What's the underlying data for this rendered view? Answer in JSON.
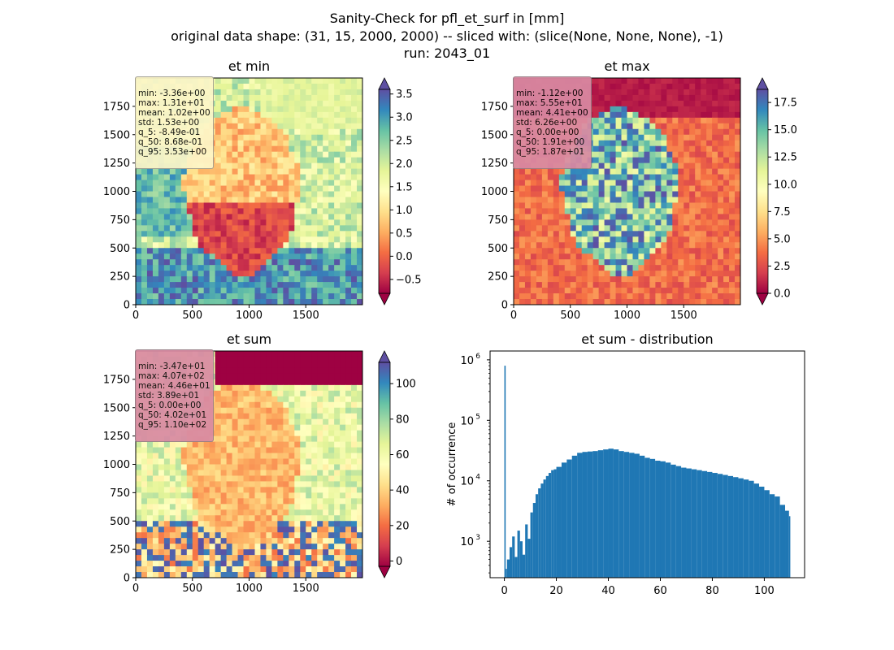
{
  "figure": {
    "title_lines": [
      "Sanity-Check for pfl_et_surf in [mm]",
      "original data shape: (31, 15, 2000, 2000) -- sliced with: (slice(None, None, None), -1)",
      "run: 2043_01"
    ]
  },
  "colormap": {
    "name": "Spectral",
    "stops": [
      "#9e0142",
      "#d53e4f",
      "#f46d43",
      "#fdae61",
      "#fee08b",
      "#ffffbf",
      "#e6f598",
      "#abdda4",
      "#66c2a5",
      "#3288bd",
      "#5e4fa2"
    ]
  },
  "chart_data": [
    {
      "type": "heatmap",
      "title": "et min",
      "x_ticks": [
        "0",
        "500",
        "1000",
        "1500"
      ],
      "y_ticks": [
        "0",
        "250",
        "500",
        "750",
        "1000",
        "1250",
        "1500",
        "1750"
      ],
      "xlim": [
        0,
        2000
      ],
      "ylim": [
        0,
        2000
      ],
      "colorbar": {
        "range": [
          -0.8,
          3.6
        ],
        "ticks": [
          -0.5,
          0.0,
          0.5,
          1.0,
          1.5,
          2.0,
          2.5,
          3.0,
          3.5
        ],
        "tick_labels": [
          "−0.5",
          "0.0",
          "0.5",
          "1.0",
          "1.5",
          "2.0",
          "2.5",
          "3.0",
          "3.5"
        ],
        "extend": "both"
      },
      "stats": [
        "min: -3.36e+00",
        "max: 1.31e+01",
        "mean: 1.02e+00",
        "std: 1.53e+00",
        "q_5: -8.49e-01",
        "q_50: 8.68e-01",
        "q_95: 3.53e+00"
      ],
      "statbox_color": "#fdf6c8"
    },
    {
      "type": "heatmap",
      "title": "et max",
      "x_ticks": [
        "0",
        "500",
        "1000",
        "1500"
      ],
      "y_ticks": [
        "0",
        "250",
        "500",
        "750",
        "1000",
        "1250",
        "1500",
        "1750"
      ],
      "xlim": [
        0,
        2000
      ],
      "ylim": [
        0,
        2000
      ],
      "colorbar": {
        "range": [
          0.0,
          18.7
        ],
        "ticks": [
          0.0,
          2.5,
          5.0,
          7.5,
          10.0,
          12.5,
          15.0,
          17.5
        ],
        "tick_labels": [
          "0.0",
          "2.5",
          "5.0",
          "7.5",
          "10.0",
          "12.5",
          "15.0",
          "17.5"
        ],
        "extend": "both"
      },
      "stats": [
        "min: -1.12e+00",
        "max: 5.55e+01",
        "mean: 4.41e+00",
        "std: 6.26e+00",
        "q_5: 0.00e+00",
        "q_50: 1.91e+00",
        "q_95: 1.87e+01"
      ],
      "statbox_color": "#d98aa3"
    },
    {
      "type": "heatmap",
      "title": "et sum",
      "x_ticks": [
        "0",
        "500",
        "1000",
        "1500"
      ],
      "y_ticks": [
        "0",
        "250",
        "500",
        "750",
        "1000",
        "1250",
        "1500",
        "1750"
      ],
      "xlim": [
        0,
        2000
      ],
      "ylim": [
        0,
        2000
      ],
      "colorbar": {
        "range": [
          -3,
          112
        ],
        "ticks": [
          0,
          20,
          40,
          60,
          80,
          100
        ],
        "tick_labels": [
          "0",
          "20",
          "40",
          "60",
          "80",
          "100"
        ],
        "extend": "both"
      },
      "stats": [
        "min: -3.47e+01",
        "max: 4.07e+02",
        "mean: 4.46e+01",
        "std: 3.89e+01",
        "q_5: 0.00e+00",
        "q_50: 4.02e+01",
        "q_95: 1.10e+02"
      ],
      "statbox_color": "#d98aa3"
    },
    {
      "type": "bar",
      "title": "et sum - distribution",
      "ylabel": "# of occurrence",
      "xlabel": "",
      "y_scale": "log",
      "xlim": [
        -5.5,
        115.5
      ],
      "ylim": [
        250,
        1400000
      ],
      "x_ticks": [
        0,
        20,
        40,
        60,
        80,
        100
      ],
      "y_ticks": [
        1000,
        10000,
        100000,
        1000000
      ],
      "y_tick_labels": [
        [
          "10",
          "3"
        ],
        [
          "10",
          "4"
        ],
        [
          "10",
          "5"
        ],
        [
          "10",
          "6"
        ]
      ],
      "bar_color": "#1f77b4",
      "bin_width": 0.5,
      "bins": {
        "x": [
          0,
          0.5,
          1,
          2,
          3,
          4,
          5,
          6,
          7,
          8,
          9,
          10,
          11,
          12,
          13,
          14,
          15,
          16,
          17,
          18,
          19,
          20,
          22,
          24,
          26,
          28,
          30,
          32,
          34,
          36,
          38,
          40,
          42,
          44,
          46,
          48,
          50,
          52,
          54,
          56,
          58,
          60,
          62,
          64,
          66,
          68,
          70,
          72,
          74,
          76,
          78,
          80,
          82,
          84,
          86,
          88,
          90,
          92,
          94,
          96,
          98,
          100,
          102,
          104,
          106,
          108,
          109.5
        ],
        "y": [
          800000,
          350,
          500,
          800,
          1200,
          550,
          1500,
          1000,
          600,
          1900,
          1100,
          3000,
          4300,
          6000,
          7500,
          9000,
          10500,
          12000,
          13500,
          15000,
          15500,
          17000,
          20000,
          22500,
          26000,
          29000,
          30000,
          30500,
          31000,
          32000,
          33000,
          34000,
          33000,
          31000,
          30000,
          29000,
          28000,
          26000,
          24000,
          23000,
          21500,
          21000,
          20000,
          18500,
          17500,
          16500,
          16000,
          15500,
          15000,
          14500,
          14000,
          13500,
          13000,
          12500,
          12000,
          11500,
          11000,
          10500,
          10000,
          9000,
          8000,
          7000,
          6000,
          5500,
          4000,
          3200,
          2600
        ]
      }
    }
  ]
}
